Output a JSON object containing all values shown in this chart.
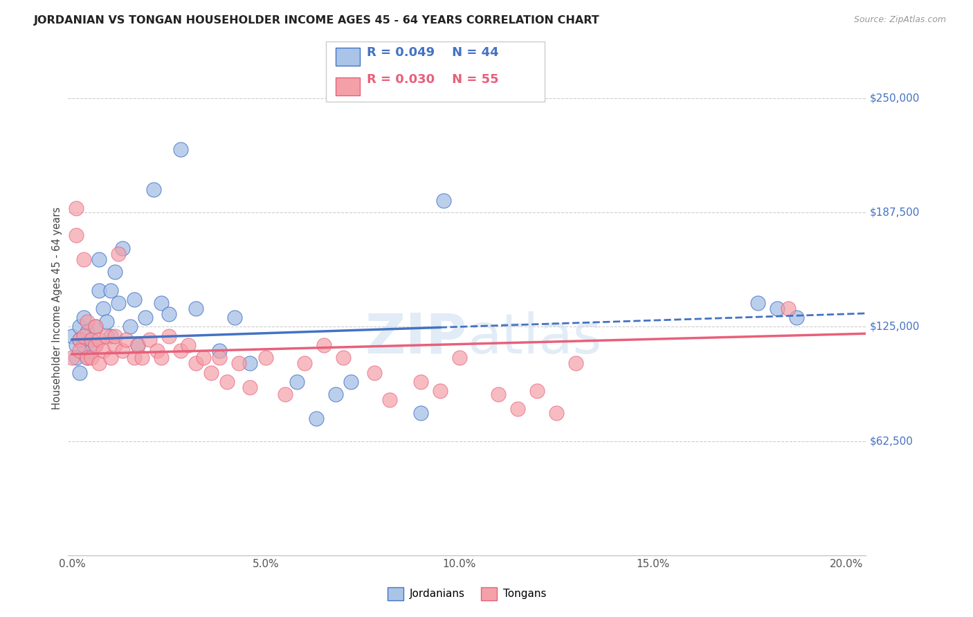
{
  "title": "JORDANIAN VS TONGAN HOUSEHOLDER INCOME AGES 45 - 64 YEARS CORRELATION CHART",
  "source": "Source: ZipAtlas.com",
  "ylabel": "Householder Income Ages 45 - 64 years",
  "xlabel_ticks": [
    "0.0%",
    "5.0%",
    "10.0%",
    "15.0%",
    "20.0%"
  ],
  "xlabel_vals": [
    0.0,
    0.05,
    0.1,
    0.15,
    0.2
  ],
  "ytick_labels": [
    "$62,500",
    "$125,000",
    "$187,500",
    "$250,000"
  ],
  "ytick_vals": [
    62500,
    125000,
    187500,
    250000
  ],
  "ylim": [
    0,
    270000
  ],
  "xlim": [
    -0.001,
    0.205
  ],
  "r_jordanian": 0.049,
  "n_jordanian": 44,
  "r_tongan": 0.03,
  "n_tongan": 55,
  "legend_labels": [
    "Jordanians",
    "Tongans"
  ],
  "blue_color": "#aac4e8",
  "pink_color": "#f4a0a8",
  "blue_line_color": "#4472c4",
  "pink_line_color": "#e8607a",
  "jordanian_x": [
    0.0,
    0.001,
    0.001,
    0.002,
    0.002,
    0.002,
    0.003,
    0.003,
    0.004,
    0.004,
    0.005,
    0.005,
    0.006,
    0.006,
    0.007,
    0.007,
    0.008,
    0.009,
    0.01,
    0.01,
    0.011,
    0.012,
    0.013,
    0.015,
    0.016,
    0.017,
    0.019,
    0.021,
    0.023,
    0.025,
    0.028,
    0.032,
    0.038,
    0.042,
    0.046,
    0.058,
    0.063,
    0.068,
    0.072,
    0.09,
    0.096,
    0.177,
    0.182,
    0.187
  ],
  "jordanian_y": [
    120000,
    115000,
    108000,
    125000,
    118000,
    100000,
    115000,
    130000,
    122000,
    108000,
    118000,
    112000,
    125000,
    115000,
    162000,
    145000,
    135000,
    128000,
    145000,
    120000,
    155000,
    138000,
    168000,
    125000,
    140000,
    115000,
    130000,
    200000,
    138000,
    132000,
    222000,
    135000,
    112000,
    130000,
    105000,
    95000,
    75000,
    88000,
    95000,
    78000,
    194000,
    138000,
    135000,
    130000
  ],
  "tongan_x": [
    0.0,
    0.001,
    0.001,
    0.002,
    0.002,
    0.003,
    0.003,
    0.004,
    0.004,
    0.005,
    0.005,
    0.006,
    0.006,
    0.007,
    0.007,
    0.008,
    0.009,
    0.01,
    0.011,
    0.011,
    0.012,
    0.013,
    0.014,
    0.016,
    0.017,
    0.018,
    0.02,
    0.022,
    0.023,
    0.025,
    0.028,
    0.03,
    0.032,
    0.034,
    0.036,
    0.038,
    0.04,
    0.043,
    0.046,
    0.05,
    0.055,
    0.06,
    0.065,
    0.07,
    0.078,
    0.082,
    0.09,
    0.095,
    0.1,
    0.11,
    0.115,
    0.12,
    0.125,
    0.13,
    0.185
  ],
  "tongan_y": [
    108000,
    190000,
    175000,
    118000,
    112000,
    162000,
    120000,
    128000,
    108000,
    118000,
    108000,
    125000,
    115000,
    118000,
    105000,
    112000,
    120000,
    108000,
    115000,
    120000,
    165000,
    112000,
    118000,
    108000,
    115000,
    108000,
    118000,
    112000,
    108000,
    120000,
    112000,
    115000,
    105000,
    108000,
    100000,
    108000,
    95000,
    105000,
    92000,
    108000,
    88000,
    105000,
    115000,
    108000,
    100000,
    85000,
    95000,
    90000,
    108000,
    88000,
    80000,
    90000,
    78000,
    105000,
    135000
  ]
}
